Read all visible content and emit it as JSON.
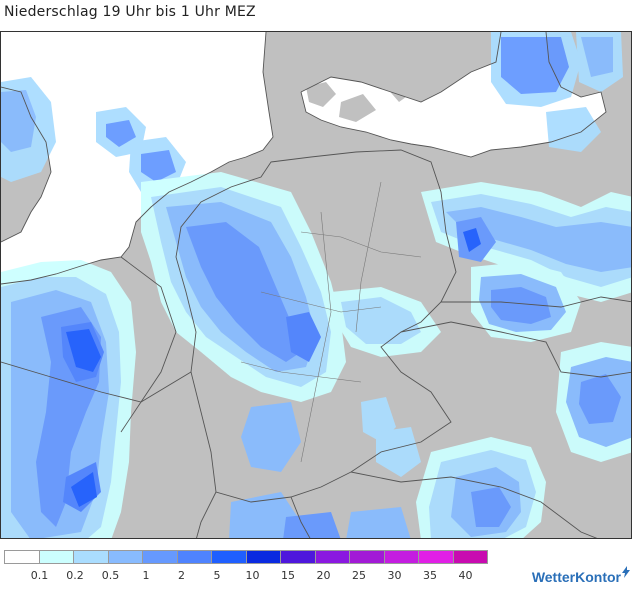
{
  "title": "Niederschlag 19 Uhr bis 1 Uhr MEZ",
  "legend": {
    "colors": [
      "#ffffff",
      "#ccffff",
      "#aaddff",
      "#88bbff",
      "#6699ff",
      "#4f83ff",
      "#1f5fff",
      "#0a2ae0",
      "#4e17dc",
      "#8a18e0",
      "#a21ad6",
      "#c41de0",
      "#e11fe6",
      "#c80bb0"
    ],
    "labels": [
      "0.1",
      "0.2",
      "0.5",
      "1",
      "2",
      "5",
      "10",
      "15",
      "20",
      "25",
      "30",
      "35",
      "40"
    ]
  },
  "brand": {
    "name": "WetterKontor",
    "icon": "lightning-icon"
  },
  "map": {
    "land_color": "#c0c0c0",
    "sea_color": "#ffffff",
    "border_color": "#555555"
  }
}
